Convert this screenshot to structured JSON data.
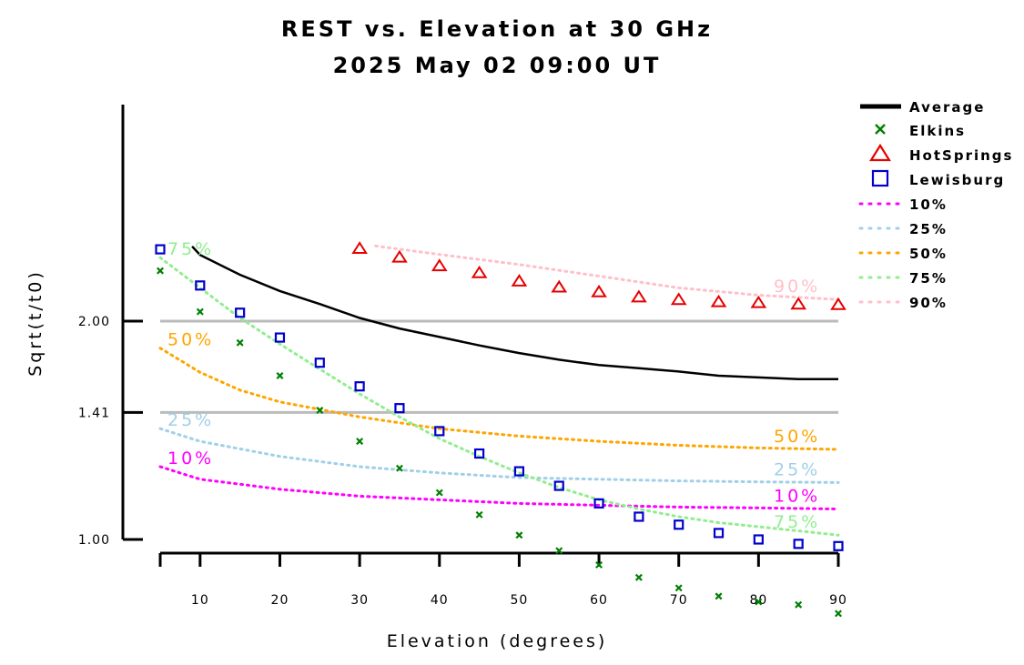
{
  "chart_data": {
    "type": "line",
    "title": "REST vs. Elevation at 30 GHz",
    "subtitle": "2025 May 02 09:00 UT",
    "xlabel": "Elevation (degrees)",
    "ylabel": "Sqrt(t/t0)",
    "xlim": [
      5,
      90
    ],
    "x_ticks": [
      10,
      20,
      30,
      40,
      50,
      60,
      70,
      80,
      90
    ],
    "x_tick_labels": [
      "10",
      "20",
      "30",
      "40",
      "50",
      "60",
      "70",
      "80",
      "90"
    ],
    "y_ticks": [
      1.0,
      1.41,
      2.0
    ],
    "y_tick_labels": [
      "1.00",
      "1.41",
      "2.00"
    ],
    "reference_lines": [
      1.41,
      2.0
    ],
    "legend_position": "right",
    "average": {
      "name": "Average",
      "color": "#000000",
      "x": [
        9,
        10,
        15,
        20,
        25,
        30,
        35,
        40,
        45,
        50,
        55,
        60,
        65,
        70,
        75,
        80,
        85,
        90
      ],
      "y": [
        3.04,
        2.87,
        2.54,
        2.32,
        2.17,
        2.03,
        1.935,
        1.865,
        1.8,
        1.745,
        1.7,
        1.665,
        1.645,
        1.625,
        1.6,
        1.59,
        1.58,
        1.58
      ]
    },
    "sites": [
      {
        "name": "Elkins",
        "marker": "x",
        "color": "#008000",
        "x": [
          5,
          10,
          15,
          20,
          25,
          30,
          35,
          40,
          45,
          50,
          55,
          60,
          65,
          70,
          75,
          80,
          85,
          90
        ],
        "y": [
          2.6,
          2.09,
          1.82,
          1.6,
          1.42,
          1.29,
          1.195,
          1.12,
          1.06,
          1.01,
          0.975,
          0.945,
          0.92,
          0.9,
          0.885,
          0.875,
          0.87,
          0.855
        ]
      },
      {
        "name": "HotSprings",
        "marker": "triangle",
        "color": "#e60000",
        "x": [
          30,
          35,
          40,
          45,
          50,
          55,
          60,
          65,
          70,
          75,
          80,
          85,
          90
        ],
        "y": [
          3.0,
          2.83,
          2.68,
          2.57,
          2.45,
          2.37,
          2.31,
          2.25,
          2.22,
          2.195,
          2.185,
          2.17,
          2.165
        ]
      },
      {
        "name": "Lewisburg",
        "marker": "square",
        "color": "#0000cc",
        "x": [
          5,
          10,
          15,
          20,
          25,
          30,
          35,
          40,
          45,
          50,
          55,
          60,
          65,
          70,
          75,
          80,
          85,
          90
        ],
        "y": [
          2.98,
          2.39,
          2.08,
          1.86,
          1.68,
          1.54,
          1.43,
          1.33,
          1.245,
          1.185,
          1.14,
          1.09,
          1.055,
          1.035,
          1.015,
          1.0,
          0.99,
          0.985
        ]
      }
    ],
    "percentiles": [
      {
        "name": "10%",
        "color": "#ff00ff",
        "x": [
          5,
          10,
          20,
          30,
          40,
          50,
          60,
          70,
          80,
          90
        ],
        "y": [
          1.2,
          1.16,
          1.13,
          1.11,
          1.1,
          1.09,
          1.085,
          1.08,
          1.078,
          1.075
        ],
        "label_left": "10%",
        "label_right": "10%"
      },
      {
        "name": "25%",
        "color": "#a0d0e8",
        "x": [
          5,
          10,
          20,
          30,
          40,
          50,
          60,
          70,
          80,
          90
        ],
        "y": [
          1.34,
          1.29,
          1.235,
          1.2,
          1.18,
          1.165,
          1.16,
          1.155,
          1.152,
          1.15
        ],
        "label_left": "25%",
        "label_right": "25%"
      },
      {
        "name": "50%",
        "color": "#ffa500",
        "x": [
          5,
          10,
          15,
          20,
          30,
          40,
          50,
          60,
          70,
          80,
          90
        ],
        "y": [
          1.78,
          1.62,
          1.52,
          1.46,
          1.39,
          1.34,
          1.31,
          1.29,
          1.275,
          1.265,
          1.26
        ],
        "label_left": "50%",
        "label_right": "50%"
      },
      {
        "name": "75%",
        "color": "#90ee90",
        "x": [
          5,
          10,
          15,
          20,
          25,
          30,
          35,
          40,
          45,
          50,
          55,
          60,
          65,
          70,
          75,
          80,
          85,
          90
        ],
        "y": [
          2.82,
          2.36,
          2.03,
          1.81,
          1.64,
          1.5,
          1.39,
          1.3,
          1.235,
          1.18,
          1.135,
          1.1,
          1.075,
          1.055,
          1.04,
          1.03,
          1.02,
          1.01
        ],
        "label_left": "75%",
        "label_right": "75%"
      },
      {
        "name": "90%",
        "color": "#ffc0cb",
        "x": [
          32,
          40,
          50,
          60,
          70,
          80,
          90
        ],
        "y": [
          3.05,
          2.88,
          2.7,
          2.52,
          2.36,
          2.27,
          2.22
        ],
        "label_left": "",
        "label_right": "90%"
      }
    ]
  }
}
